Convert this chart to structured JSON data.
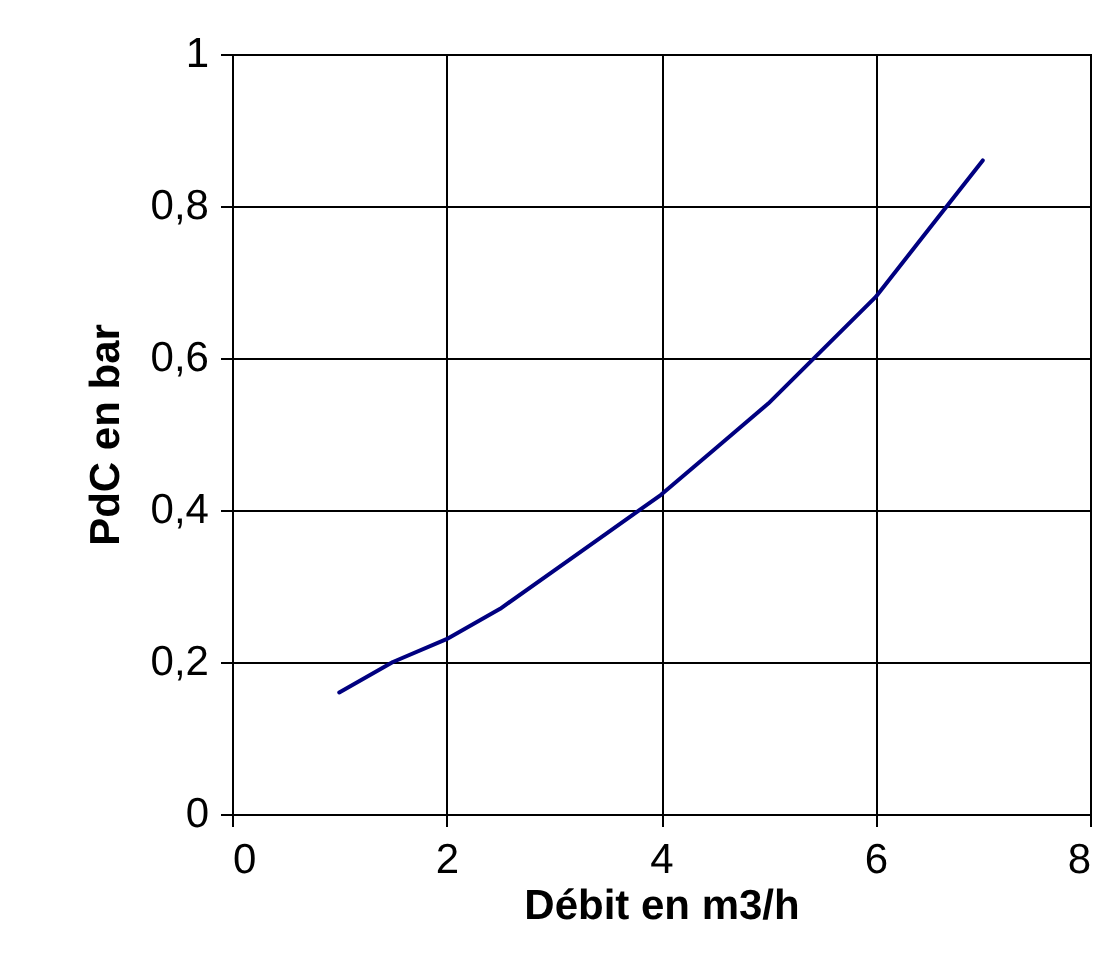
{
  "chart_data": {
    "type": "line",
    "xlabel": "Débit en m3/h",
    "ylabel": "PdC en bar",
    "x": [
      1,
      1.5,
      2,
      2.5,
      3,
      3.5,
      4,
      4.5,
      5,
      5.5,
      6,
      6.5,
      7
    ],
    "series": [
      {
        "color": "#000080",
        "values": [
          0.16,
          0.2,
          0.23,
          0.27,
          0.32,
          0.37,
          0.42,
          0.48,
          0.54,
          0.61,
          0.68,
          0.77,
          0.86
        ]
      }
    ],
    "xlim": [
      0,
      8
    ],
    "xticks": [
      0,
      2,
      4,
      6,
      8
    ],
    "ylim": [
      0,
      1
    ],
    "yticks": [
      0,
      {
        "value": 0.2,
        "label": "0,2"
      },
      {
        "value": 0.4,
        "label": "0,4"
      },
      {
        "value": 0.6,
        "label": "0,6"
      },
      {
        "value": 0.8,
        "label": "0,8"
      },
      1
    ],
    "grid": true,
    "marker": "none",
    "line_style": "solid"
  }
}
